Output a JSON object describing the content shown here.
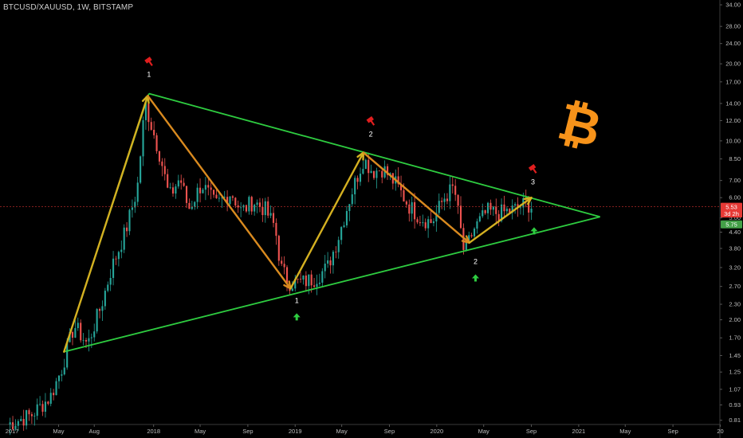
{
  "header": {
    "symbol": "BTCUSD/XAUUSD, 1W, BITSTAMP"
  },
  "colors": {
    "bg": "#000000",
    "up": "#26a69a",
    "down": "#ef5350",
    "triangle": "#2ecc40",
    "wave_up": "#d4b021",
    "wave_down": "#d98a1f",
    "price_tag": "#e53935",
    "support_tag": "#43a047",
    "bitcoin": "#f7931a",
    "top_marker": "#e01e1e",
    "bottom_marker": "#2ecc40"
  },
  "chart_data": {
    "type": "candlestick",
    "scale": "log",
    "ylim": [
      0.78,
      35
    ],
    "xlim": [
      "2016-12-01",
      "2021-12-31"
    ],
    "y_ticks": [
      "34.00",
      "28.00",
      "24.00",
      "20.00",
      "17.00",
      "14.00",
      "12.00",
      "10.00",
      "8.50",
      "7.00",
      "6.00",
      "5.00",
      "4.40",
      "3.80",
      "3.20",
      "2.70",
      "2.30",
      "2.00",
      "1.70",
      "1.45",
      "1.25",
      "1.07",
      "0.93",
      "0.81"
    ],
    "x_ticks": [
      "2017",
      "May",
      "Aug",
      "2018",
      "May",
      "Sep",
      "2019",
      "May",
      "Sep",
      "2020",
      "May",
      "Sep",
      "2021",
      "May",
      "Sep",
      "20"
    ],
    "x_tick_dates": [
      "2017-01-01",
      "2017-05-01",
      "2017-08-01",
      "2018-01-01",
      "2018-05-01",
      "2018-09-01",
      "2019-01-01",
      "2019-05-01",
      "2019-09-01",
      "2020-01-01",
      "2020-05-01",
      "2020-09-01",
      "2021-01-01",
      "2021-05-01",
      "2021-09-01",
      "2022-01-01"
    ],
    "path": [
      [
        "2016-12-20",
        0.78
      ],
      [
        "2017-02-20",
        0.85
      ],
      [
        "2017-04-10",
        1.0
      ],
      [
        "2017-05-10",
        1.3
      ],
      [
        "2017-06-10",
        1.9
      ],
      [
        "2017-07-15",
        1.6
      ],
      [
        "2017-08-20",
        2.3
      ],
      [
        "2017-09-15",
        3.2
      ],
      [
        "2017-10-20",
        4.4
      ],
      [
        "2017-11-20",
        6.5
      ],
      [
        "2017-12-10",
        14.0
      ],
      [
        "2017-12-30",
        11.0
      ],
      [
        "2018-01-20",
        8.5
      ],
      [
        "2018-02-10",
        6.0
      ],
      [
        "2018-03-10",
        7.2
      ],
      [
        "2018-04-01",
        5.4
      ],
      [
        "2018-05-05",
        6.8
      ],
      [
        "2018-06-10",
        5.6
      ],
      [
        "2018-07-20",
        6.3
      ],
      [
        "2018-08-15",
        5.3
      ],
      [
        "2018-09-15",
        5.8
      ],
      [
        "2018-10-15",
        5.4
      ],
      [
        "2018-11-10",
        4.6
      ],
      [
        "2018-11-25",
        3.2
      ],
      [
        "2018-12-15",
        2.8
      ],
      [
        "2019-01-20",
        2.8
      ],
      [
        "2019-02-20",
        2.9
      ],
      [
        "2019-03-25",
        3.2
      ],
      [
        "2019-04-20",
        4.1
      ],
      [
        "2019-05-25",
        6.2
      ],
      [
        "2019-06-26",
        8.5
      ],
      [
        "2019-07-20",
        7.6
      ],
      [
        "2019-08-15",
        7.8
      ],
      [
        "2019-09-20",
        6.7
      ],
      [
        "2019-10-20",
        5.6
      ],
      [
        "2019-11-20",
        5.0
      ],
      [
        "2019-12-20",
        4.8
      ],
      [
        "2020-01-20",
        6.0
      ],
      [
        "2020-02-15",
        6.6
      ],
      [
        "2020-03-12",
        3.6
      ],
      [
        "2020-04-05",
        4.5
      ],
      [
        "2020-05-10",
        5.3
      ],
      [
        "2020-06-10",
        5.2
      ],
      [
        "2020-07-20",
        5.4
      ],
      [
        "2020-08-20",
        5.7
      ],
      [
        "2020-09-05",
        5.5
      ]
    ],
    "triangle_lines": [
      {
        "from": [
          "2017-05-15",
          1.5
        ],
        "to": [
          "2017-12-20",
          15.3
        ]
      },
      {
        "from": [
          "2017-12-20",
          15.3
        ],
        "to": [
          "2021-02-25",
          5.05
        ]
      },
      {
        "from": [
          "2017-05-15",
          1.5
        ],
        "to": [
          "2021-02-25",
          5.05
        ]
      }
    ],
    "wave_arrows": [
      {
        "from": [
          "2017-05-15",
          1.5
        ],
        "to": [
          "2017-12-17",
          15.0
        ],
        "dir": "up"
      },
      {
        "from": [
          "2017-12-17",
          15.0
        ],
        "to": [
          "2018-12-20",
          2.65
        ],
        "dir": "down"
      },
      {
        "from": [
          "2018-12-20",
          2.65
        ],
        "to": [
          "2019-06-26",
          9.0
        ],
        "dir": "up"
      },
      {
        "from": [
          "2019-06-26",
          9.0
        ],
        "to": [
          "2020-03-25",
          4.0
        ],
        "dir": "down"
      },
      {
        "from": [
          "2020-03-25",
          4.0
        ],
        "to": [
          "2020-09-01",
          6.0
        ],
        "dir": "up"
      }
    ],
    "current_price": 5.53,
    "tags": [
      {
        "label": "5.53",
        "value": 5.53,
        "color": "#e53935"
      },
      {
        "label": "3d 2h",
        "value": 5.2,
        "color": "#e53935"
      },
      {
        "label": "5.75",
        "value": 4.72,
        "color": "#43a047"
      }
    ],
    "top_markers": [
      {
        "date": "2017-12-20",
        "value": 20.5,
        "label": "1"
      },
      {
        "date": "2019-07-15",
        "value": 12.0,
        "label": "2"
      },
      {
        "date": "2020-09-05",
        "value": 7.8,
        "label": "3"
      }
    ],
    "bottom_markers": [
      {
        "date": "2019-01-05",
        "value": 2.5,
        "label": "1"
      },
      {
        "date": "2020-04-10",
        "value": 3.55,
        "label": "2"
      },
      {
        "date": "2020-09-08",
        "value": 4.8,
        "label": ""
      }
    ]
  }
}
